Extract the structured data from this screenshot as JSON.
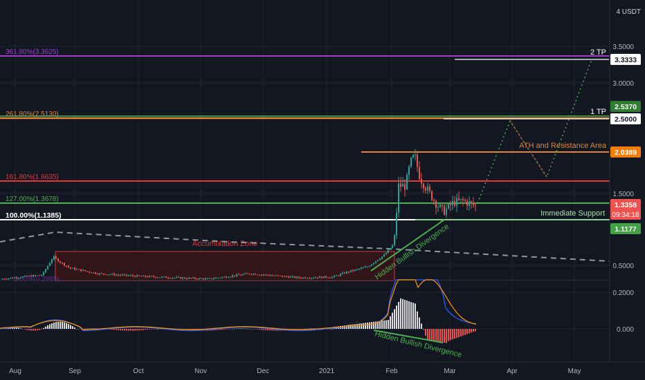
{
  "chart_data": [
    {
      "type": "candlestick",
      "title": "",
      "currency": "USDT",
      "y_unit_label": "4 USDT",
      "yticks": [
        "3.5000",
        "3.0000",
        "1.5000",
        "0.5000"
      ],
      "ylim": [
        0,
        4
      ],
      "xticks": [
        "Aug",
        "Sep",
        "Oct",
        "Nov",
        "Dec",
        "2021",
        "Feb",
        "Mar",
        "Apr",
        "May"
      ],
      "last_price": "1.3358",
      "countdown": "09:34:18",
      "price_badges": [
        {
          "text": "3.3333",
          "style": "white",
          "value": 3.3333
        },
        {
          "text": "2.5370",
          "style": "green",
          "value": 2.537
        },
        {
          "text": "2.5000",
          "style": "white",
          "value": 2.5
        },
        {
          "text": "2.0389",
          "style": "orange",
          "value": 2.0389
        },
        {
          "text": "1.1177",
          "style": "green",
          "value": 1.1177
        }
      ],
      "fib_levels": [
        {
          "label": "361.80%(3.3625)",
          "value": 3.3625,
          "color": "#a23bd1"
        },
        {
          "label": "261.80%(2.5130)",
          "value": 2.513,
          "color": "#e0853b"
        },
        {
          "label": "161.80%(1.6635)",
          "value": 1.6635,
          "color": "#e03b3b"
        },
        {
          "label": "127.00%(1.3678)",
          "value": 1.3678,
          "color": "#4caf50"
        },
        {
          "label": "100.00%(1.1385)",
          "value": 1.1385,
          "color": "#ffffff"
        },
        {
          "label": "0.00%(0.2885)",
          "value": 0.2885,
          "color": "#a23bd1"
        }
      ],
      "annotations": {
        "tp2": "2 TP",
        "tp1": "1 TP",
        "ath": "ATH and Resistance Area",
        "support": "Immediate Support",
        "accumulation": "Accumulation Zone",
        "divergence_price": "Hidden Bullish Divergence",
        "divergence_macd": "Hidden Bullish Divergence"
      },
      "series": [
        {
          "name": "price_close_approx",
          "x": [
            "Aug",
            "Sep",
            "Oct",
            "Nov",
            "Dec",
            "2021",
            "Feb",
            "Mar"
          ],
          "values": [
            0.33,
            0.55,
            0.35,
            0.33,
            0.37,
            0.33,
            1.4,
            1.34
          ]
        }
      ],
      "colors": {
        "up": "#26a69a",
        "down": "#ef5350",
        "background": "#131722"
      }
    },
    {
      "type": "macd",
      "yticks": [
        "0.2000",
        "0.000"
      ],
      "ylim": [
        -0.11,
        0.28
      ]
    }
  ]
}
